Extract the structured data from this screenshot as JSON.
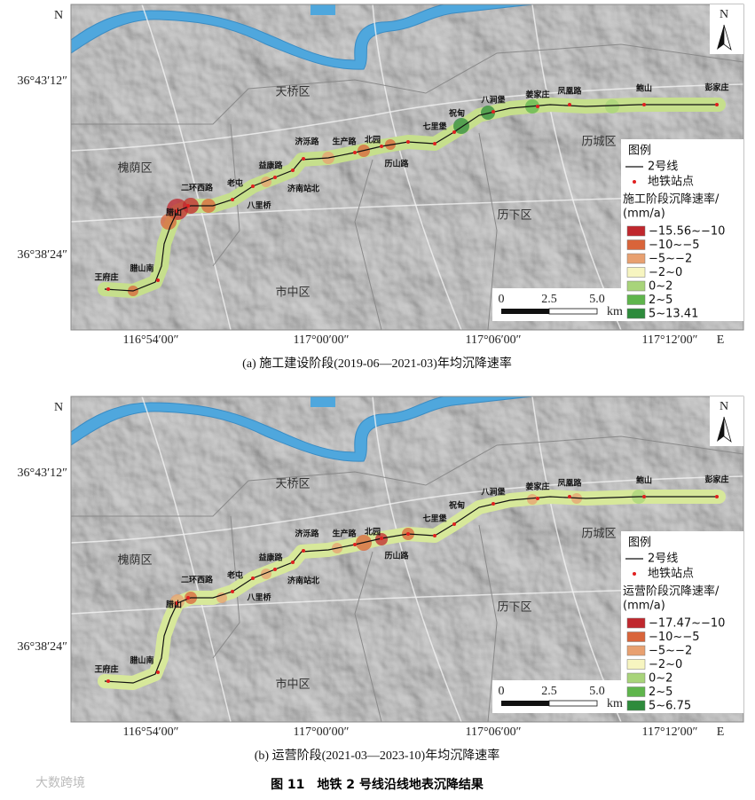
{
  "panels": [
    {
      "caption": "(a) 施工建设阶段(2019-06—2021-03)年均沉降速率",
      "north_label": "N",
      "east_label": "E",
      "lat_labels": [
        "36°43′12″",
        "36°38′24″"
      ],
      "lon_labels": [
        "116°54′00″",
        "117°00′00″",
        "117°06′00″",
        "117°12′00″"
      ],
      "districts": [
        "天桥区",
        "槐荫区",
        "历城区",
        "历下区",
        "市中区"
      ],
      "stations": [
        "王府庄",
        "腊山南",
        "腊山",
        "二环西路",
        "老屯",
        "八里桥",
        "益康路",
        "济南站北",
        "济泺路",
        "生产路",
        "北园",
        "历山路",
        "七里堡",
        "祝甸",
        "八涧堡",
        "姜家庄",
        "凤凰路",
        "鲍山",
        "彭家庄"
      ],
      "north_arrow": "N",
      "legend": {
        "title": "图例",
        "line_label": "2号线",
        "station_label": "地铁站点",
        "rate_title": "施工阶段沉降速率/",
        "unit": "(mm/a)",
        "classes": [
          {
            "label": "−15.56~−10",
            "color": "#c0272d"
          },
          {
            "label": "−10~−5",
            "color": "#d9643a"
          },
          {
            "label": "−5~−2",
            "color": "#e8a070"
          },
          {
            "label": "−2~0",
            "color": "#f7f5c0"
          },
          {
            "label": "0~2",
            "color": "#a8d47a"
          },
          {
            "label": "2~5",
            "color": "#5fb54c"
          },
          {
            "label": "5~13.41",
            "color": "#2e8b3c"
          }
        ]
      },
      "scale": {
        "labels": [
          "0",
          "2.5",
          "5.0"
        ],
        "unit": "km"
      }
    },
    {
      "caption": "(b) 运营阶段(2021-03—2023-10)年均沉降速率",
      "north_label": "N",
      "east_label": "E",
      "lat_labels": [
        "36°43′12″",
        "36°38′24″"
      ],
      "lon_labels": [
        "116°54′00″",
        "117°00′00″",
        "117°06′00″",
        "117°12′00″"
      ],
      "districts": [
        "天桥区",
        "槐荫区",
        "历城区",
        "历下区",
        "市中区"
      ],
      "stations": [
        "王府庄",
        "腊山南",
        "腊山",
        "二环西路",
        "老屯",
        "八里桥",
        "益康路",
        "济南站北",
        "济泺路",
        "生产路",
        "北园",
        "历山路",
        "七里堡",
        "祝甸",
        "八涧堡",
        "姜家庄",
        "凤凰路",
        "鲍山",
        "彭家庄"
      ],
      "north_arrow": "N",
      "legend": {
        "title": "图例",
        "line_label": "2号线",
        "station_label": "地铁站点",
        "rate_title": "运营阶段沉降速率/",
        "unit": "(mm/a)",
        "classes": [
          {
            "label": "−17.47~−10",
            "color": "#c0272d"
          },
          {
            "label": "−10~−5",
            "color": "#d9643a"
          },
          {
            "label": "−5~−2",
            "color": "#e8a070"
          },
          {
            "label": "−2~0",
            "color": "#f7f5c0"
          },
          {
            "label": "0~2",
            "color": "#a8d47a"
          },
          {
            "label": "2~5",
            "color": "#5fb54c"
          },
          {
            "label": "5~6.75",
            "color": "#2e8b3c"
          }
        ]
      },
      "scale": {
        "labels": [
          "0",
          "2.5",
          "5.0"
        ],
        "unit": "km"
      }
    }
  ],
  "figure_caption": "图 11　地铁 2 号线沿线地表沉降结果",
  "watermark": "大数跨境"
}
